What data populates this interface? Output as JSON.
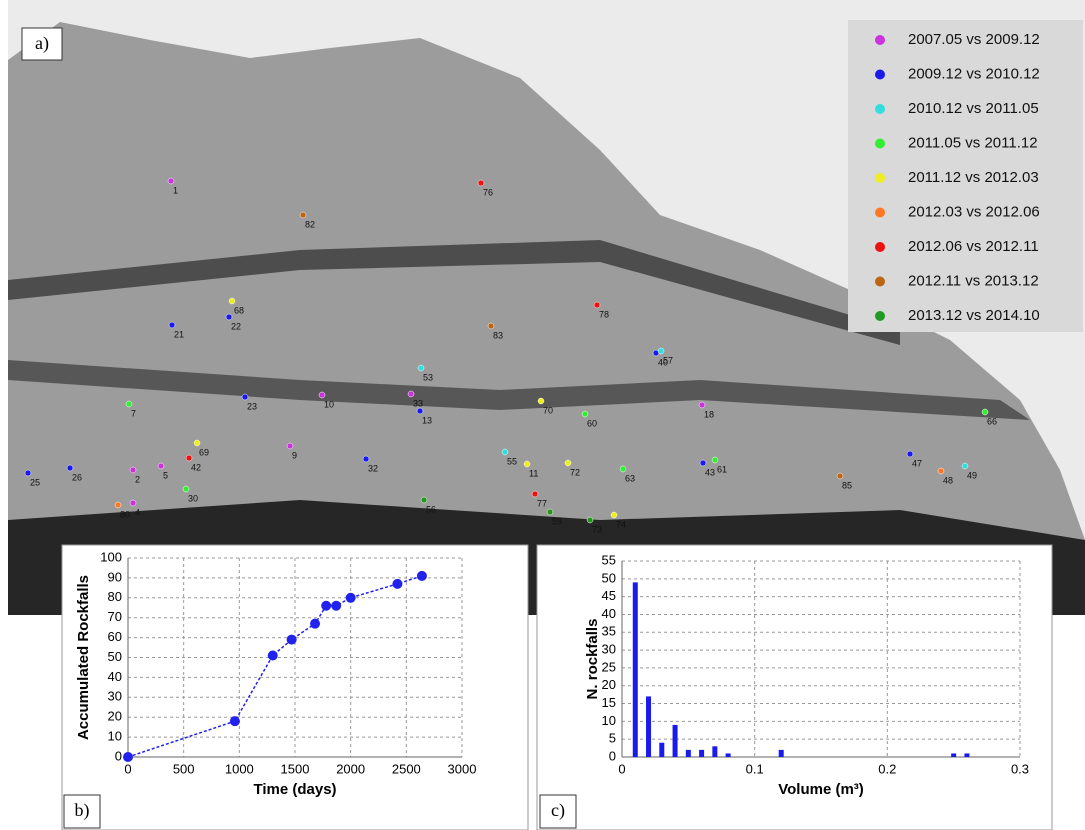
{
  "chart_data": [
    {
      "type": "photo-map",
      "panel": "a)",
      "series": [
        {
          "name": "2007.05 vs 2009.12",
          "color": "#cc33dd",
          "points": [
            "1",
            "10",
            "18",
            "9",
            "2",
            "5",
            "4",
            "33"
          ]
        },
        {
          "name": "2009.12 vs 2010.12",
          "color": "#1a1aee",
          "points": [
            "21",
            "22",
            "23",
            "32",
            "13",
            "40",
            "47",
            "43",
            "26",
            "25"
          ]
        },
        {
          "name": "2010.12 vs 2011.05",
          "color": "#33dddd",
          "points": [
            "53",
            "55",
            "57",
            "49"
          ]
        },
        {
          "name": "2011.05 vs 2011.12",
          "color": "#33ee33",
          "points": [
            "7",
            "60",
            "63",
            "61",
            "66",
            "30"
          ]
        },
        {
          "name": "2011.12 vs 2012.03",
          "color": "#eeee22",
          "points": [
            "68",
            "70",
            "69",
            "72",
            "74",
            "11"
          ]
        },
        {
          "name": "2012.03 vs 2012.06",
          "color": "#ff7722",
          "points": [
            "48",
            "80"
          ]
        },
        {
          "name": "2012.06 vs 2012.11",
          "color": "#ee1111",
          "points": [
            "78",
            "76",
            "77",
            "42"
          ]
        },
        {
          "name": "2012.11 vs 2013.12",
          "color": "#bb6611",
          "points": [
            "82",
            "83",
            "85"
          ]
        },
        {
          "name": "2013.12 vs 2014.10",
          "color": "#229922",
          "points": [
            "56",
            "59",
            "73"
          ]
        }
      ]
    },
    {
      "type": "line",
      "panel": "b)",
      "xlabel": "Time (days)",
      "ylabel": "Accumulated Rockfalls",
      "color": "#2222ee",
      "x": [
        0,
        960,
        1300,
        1470,
        1680,
        1780,
        1870,
        2000,
        2420,
        2640
      ],
      "values": [
        0,
        18,
        51,
        59,
        67,
        76,
        76,
        80,
        87,
        91
      ],
      "xlim": [
        0,
        3000
      ],
      "xticks": [
        0,
        500,
        1000,
        1500,
        2000,
        2500,
        3000
      ],
      "ylim": [
        0,
        100
      ],
      "yticks": [
        0,
        10,
        20,
        30,
        40,
        50,
        60,
        70,
        80,
        90,
        100
      ],
      "grid": true
    },
    {
      "type": "bar",
      "panel": "c)",
      "xlabel": "Volume (m³)",
      "ylabel": "N. rockfalls",
      "color": "#1a1aee",
      "x": [
        0.01,
        0.02,
        0.03,
        0.04,
        0.05,
        0.06,
        0.07,
        0.08,
        0.12,
        0.25,
        0.26
      ],
      "values": [
        49,
        17,
        4,
        9,
        2,
        2,
        3,
        1,
        2,
        1,
        1
      ],
      "xlim": [
        0,
        0.3
      ],
      "xticks": [
        0,
        0.1,
        0.2,
        0.3
      ],
      "ylim": [
        0,
        55
      ],
      "yticks": [
        0,
        5,
        10,
        15,
        20,
        25,
        30,
        35,
        40,
        45,
        50,
        55
      ],
      "grid": true
    }
  ]
}
